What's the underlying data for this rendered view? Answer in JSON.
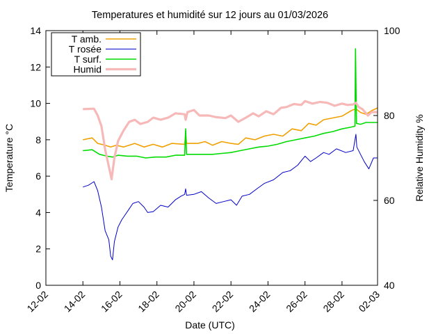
{
  "chart_data": {
    "type": "line",
    "title": "Temperatures et humidité sur 12 jours au 01/03/2026",
    "xlabel": "Date (UTC)",
    "ylabel": "Temperature °C",
    "y2label": "Relative Humidity %",
    "xlim_days": [
      12,
      29.92
    ],
    "x_ticks": [
      {
        "day": 12,
        "label": "12-02"
      },
      {
        "day": 14,
        "label": "14-02"
      },
      {
        "day": 16,
        "label": "16-02"
      },
      {
        "day": 18,
        "label": "18-02"
      },
      {
        "day": 20,
        "label": "20-02"
      },
      {
        "day": 22,
        "label": "22-02"
      },
      {
        "day": 24,
        "label": "24-02"
      },
      {
        "day": 26,
        "label": "26-02"
      },
      {
        "day": 28,
        "label": "28-02"
      },
      {
        "day": 29.92,
        "label": "02-03"
      }
    ],
    "ylim": [
      0,
      14
    ],
    "y_ticks": [
      "0",
      "2",
      "4",
      "6",
      "8",
      "10",
      "12",
      "14"
    ],
    "y2lim": [
      40,
      100
    ],
    "y2_ticks": [
      "40",
      "60",
      "80",
      "100"
    ],
    "legend_position": "top-left",
    "series": [
      {
        "name": "T amb.",
        "axis": "y",
        "color": "#f0a000",
        "width": 1.6,
        "points": [
          [
            14,
            8.0
          ],
          [
            14.5,
            8.1
          ],
          [
            14.8,
            7.8
          ],
          [
            15.2,
            7.7
          ],
          [
            15.5,
            7.6
          ],
          [
            15.8,
            7.7
          ],
          [
            16.2,
            7.6
          ],
          [
            16.8,
            7.8
          ],
          [
            17.3,
            7.6
          ],
          [
            17.8,
            7.75
          ],
          [
            18.3,
            7.6
          ],
          [
            18.8,
            7.8
          ],
          [
            19.5,
            7.75
          ],
          [
            19.55,
            8.3
          ],
          [
            19.6,
            7.8
          ],
          [
            20.2,
            7.8
          ],
          [
            20.6,
            7.9
          ],
          [
            21,
            7.7
          ],
          [
            21.5,
            7.9
          ],
          [
            22,
            7.8
          ],
          [
            22.4,
            7.75
          ],
          [
            22.8,
            8.1
          ],
          [
            23.3,
            8.0
          ],
          [
            23.8,
            8.2
          ],
          [
            24.3,
            8.3
          ],
          [
            24.8,
            8.2
          ],
          [
            25.3,
            8.6
          ],
          [
            25.8,
            8.5
          ],
          [
            26.2,
            8.9
          ],
          [
            26.6,
            8.8
          ],
          [
            27,
            9.1
          ],
          [
            27.5,
            9.2
          ],
          [
            28,
            9.3
          ],
          [
            28.5,
            9.6
          ],
          [
            28.75,
            9.7
          ],
          [
            29.0,
            9.5
          ],
          [
            29.3,
            9.4
          ],
          [
            29.6,
            9.6
          ],
          [
            29.92,
            9.75
          ]
        ]
      },
      {
        "name": "T rosée",
        "axis": "y",
        "color": "#0000c8",
        "width": 1,
        "points": [
          [
            14,
            5.4
          ],
          [
            14.3,
            5.5
          ],
          [
            14.6,
            5.7
          ],
          [
            14.8,
            5.2
          ],
          [
            15.0,
            4.3
          ],
          [
            15.2,
            3.0
          ],
          [
            15.4,
            2.5
          ],
          [
            15.5,
            1.6
          ],
          [
            15.6,
            1.4
          ],
          [
            15.7,
            2.4
          ],
          [
            15.9,
            3.2
          ],
          [
            16.1,
            3.6
          ],
          [
            16.3,
            3.9
          ],
          [
            16.5,
            4.2
          ],
          [
            16.7,
            4.5
          ],
          [
            17.0,
            4.6
          ],
          [
            17.3,
            4.3
          ],
          [
            17.5,
            4.0
          ],
          [
            17.8,
            4.05
          ],
          [
            18.2,
            4.4
          ],
          [
            18.6,
            4.3
          ],
          [
            19.0,
            4.7
          ],
          [
            19.3,
            4.9
          ],
          [
            19.5,
            5.0
          ],
          [
            19.55,
            5.3
          ],
          [
            19.6,
            4.95
          ],
          [
            20.0,
            5.0
          ],
          [
            20.4,
            5.15
          ],
          [
            20.8,
            4.8
          ],
          [
            21.2,
            4.5
          ],
          [
            21.6,
            4.6
          ],
          [
            22.0,
            4.7
          ],
          [
            22.3,
            4.4
          ],
          [
            22.6,
            4.9
          ],
          [
            23.0,
            5.0
          ],
          [
            23.4,
            5.3
          ],
          [
            23.8,
            5.6
          ],
          [
            24.3,
            5.8
          ],
          [
            24.8,
            6.2
          ],
          [
            25.2,
            6.3
          ],
          [
            25.6,
            6.6
          ],
          [
            26.0,
            7.1
          ],
          [
            26.3,
            6.8
          ],
          [
            26.6,
            7.0
          ],
          [
            27.0,
            7.3
          ],
          [
            27.3,
            7.2
          ],
          [
            27.7,
            7.5
          ],
          [
            28.2,
            7.3
          ],
          [
            28.6,
            7.4
          ],
          [
            28.75,
            8.3
          ],
          [
            28.8,
            7.6
          ],
          [
            29.0,
            7.2
          ],
          [
            29.2,
            6.8
          ],
          [
            29.45,
            6.4
          ],
          [
            29.7,
            7.0
          ],
          [
            29.92,
            7.0
          ]
        ]
      },
      {
        "name": "T surf.",
        "axis": "y",
        "color": "#00dc00",
        "width": 1.6,
        "points": [
          [
            14,
            7.4
          ],
          [
            14.5,
            7.45
          ],
          [
            14.9,
            7.2
          ],
          [
            15.3,
            7.1
          ],
          [
            15.6,
            7.05
          ],
          [
            15.9,
            7.15
          ],
          [
            16.4,
            7.1
          ],
          [
            16.9,
            7.1
          ],
          [
            17.4,
            7.0
          ],
          [
            17.9,
            7.05
          ],
          [
            18.5,
            7.05
          ],
          [
            19.0,
            7.15
          ],
          [
            19.5,
            7.15
          ],
          [
            19.55,
            8.6
          ],
          [
            19.6,
            7.2
          ],
          [
            20.0,
            7.2
          ],
          [
            20.5,
            7.2
          ],
          [
            21.0,
            7.2
          ],
          [
            21.5,
            7.25
          ],
          [
            22.0,
            7.3
          ],
          [
            22.5,
            7.4
          ],
          [
            23.0,
            7.5
          ],
          [
            23.5,
            7.6
          ],
          [
            24.0,
            7.65
          ],
          [
            24.5,
            7.75
          ],
          [
            25.0,
            7.9
          ],
          [
            25.5,
            8.0
          ],
          [
            26.0,
            8.1
          ],
          [
            26.5,
            8.2
          ],
          [
            27.0,
            8.35
          ],
          [
            27.5,
            8.45
          ],
          [
            28.0,
            8.6
          ],
          [
            28.5,
            8.7
          ],
          [
            28.7,
            8.75
          ],
          [
            28.73,
            13.0
          ],
          [
            28.78,
            8.9
          ],
          [
            29.0,
            8.85
          ],
          [
            29.3,
            8.95
          ],
          [
            29.92,
            8.95
          ]
        ]
      },
      {
        "name": "Humid",
        "axis": "y2",
        "color": "#f7b8b8",
        "width": 3.2,
        "points": [
          [
            14,
            81.5
          ],
          [
            14.6,
            81.6
          ],
          [
            14.8,
            80.0
          ],
          [
            15.0,
            77.5
          ],
          [
            15.2,
            72.0
          ],
          [
            15.4,
            68.0
          ],
          [
            15.55,
            65.0
          ],
          [
            15.7,
            70.0
          ],
          [
            15.9,
            74.0
          ],
          [
            16.2,
            76.5
          ],
          [
            16.5,
            78.5
          ],
          [
            16.8,
            79.0
          ],
          [
            17.1,
            78.0
          ],
          [
            17.5,
            78.5
          ],
          [
            17.8,
            79.5
          ],
          [
            18.2,
            79.0
          ],
          [
            18.6,
            79.5
          ],
          [
            19.0,
            80.5
          ],
          [
            19.5,
            80.3
          ],
          [
            19.55,
            79.0
          ],
          [
            19.65,
            80.8
          ],
          [
            20.0,
            81.3
          ],
          [
            20.3,
            80.0
          ],
          [
            20.8,
            80.0
          ],
          [
            21.2,
            79.6
          ],
          [
            21.7,
            79.4
          ],
          [
            22.0,
            80.0
          ],
          [
            22.4,
            78.5
          ],
          [
            22.8,
            79.5
          ],
          [
            23.2,
            80.5
          ],
          [
            23.5,
            79.8
          ],
          [
            23.9,
            81.0
          ],
          [
            24.3,
            80.3
          ],
          [
            24.7,
            81.8
          ],
          [
            25.0,
            82.0
          ],
          [
            25.4,
            82.7
          ],
          [
            25.8,
            82.5
          ],
          [
            26.0,
            83.4
          ],
          [
            26.4,
            82.8
          ],
          [
            26.8,
            83.2
          ],
          [
            27.2,
            83.0
          ],
          [
            27.6,
            82.3
          ],
          [
            28.0,
            82.8
          ],
          [
            28.3,
            82.5
          ],
          [
            28.6,
            82.6
          ],
          [
            28.75,
            83.0
          ],
          [
            28.9,
            82.0
          ],
          [
            29.1,
            81.5
          ],
          [
            29.4,
            80.0
          ],
          [
            29.6,
            80.8
          ],
          [
            29.92,
            80.8
          ]
        ]
      }
    ]
  }
}
